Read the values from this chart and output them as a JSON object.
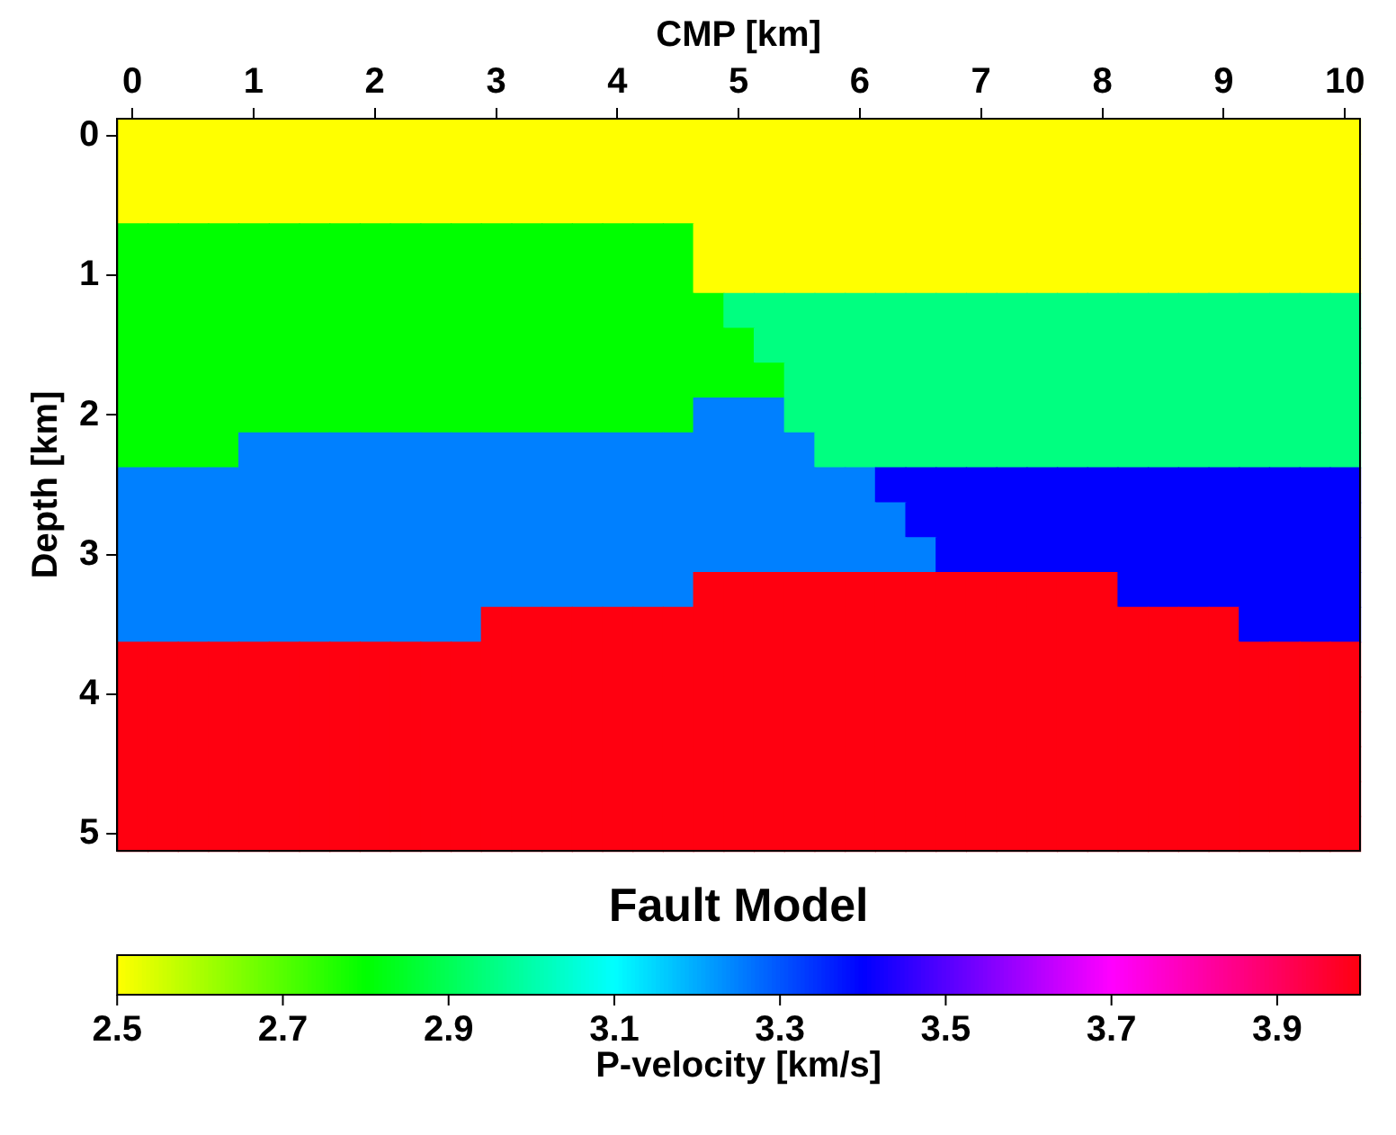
{
  "chart_data": {
    "type": "heatmap",
    "title": "Fault Model",
    "xlabel": "CMP [km]",
    "ylabel": "Depth [km]",
    "clabel": "P-velocity [km/s]",
    "clim": [
      2.5,
      4.0
    ],
    "cticks": [
      2.5,
      2.7,
      2.9,
      3.1,
      3.3,
      3.5,
      3.7,
      3.9
    ],
    "categories": [
      "0",
      null,
      null,
      null,
      "1",
      null,
      null,
      null,
      "2",
      null,
      null,
      null,
      "3",
      null,
      null,
      null,
      "4",
      null,
      null,
      null,
      "5",
      null,
      null,
      null,
      "6",
      null,
      null,
      null,
      "7",
      null,
      null,
      null,
      "8",
      null,
      null,
      null,
      "9",
      null,
      null,
      null,
      "10"
    ],
    "y_categories": [
      "0",
      null,
      null,
      null,
      "1",
      null,
      null,
      null,
      "2",
      null,
      null,
      null,
      "3",
      null,
      null,
      null,
      "4",
      null,
      null,
      null,
      "5"
    ],
    "cells": [
      [
        2.5,
        2.5,
        2.5,
        2.5,
        2.5,
        2.5,
        2.5,
        2.5,
        2.5,
        2.5,
        2.5,
        2.5,
        2.5,
        2.5,
        2.5,
        2.5,
        2.5,
        2.5,
        2.5,
        2.5,
        2.5,
        2.5,
        2.5,
        2.5,
        2.5,
        2.5,
        2.5,
        2.5,
        2.5,
        2.5,
        2.5,
        2.5,
        2.5,
        2.5,
        2.5,
        2.5,
        2.5,
        2.5,
        2.5,
        2.5,
        2.5
      ],
      [
        2.5,
        2.5,
        2.5,
        2.5,
        2.5,
        2.5,
        2.5,
        2.5,
        2.5,
        2.5,
        2.5,
        2.5,
        2.5,
        2.5,
        2.5,
        2.5,
        2.5,
        2.5,
        2.5,
        2.5,
        2.5,
        2.5,
        2.5,
        2.5,
        2.5,
        2.5,
        2.5,
        2.5,
        2.5,
        2.5,
        2.5,
        2.5,
        2.5,
        2.5,
        2.5,
        2.5,
        2.5,
        2.5,
        2.5,
        2.5,
        2.5
      ],
      [
        2.5,
        2.5,
        2.5,
        2.5,
        2.5,
        2.5,
        2.5,
        2.5,
        2.5,
        2.5,
        2.5,
        2.5,
        2.5,
        2.5,
        2.5,
        2.5,
        2.5,
        2.5,
        2.5,
        2.5,
        2.5,
        2.5,
        2.5,
        2.5,
        2.5,
        2.5,
        2.5,
        2.5,
        2.5,
        2.5,
        2.5,
        2.5,
        2.5,
        2.5,
        2.5,
        2.5,
        2.5,
        2.5,
        2.5,
        2.5,
        2.5
      ],
      [
        2.8,
        2.8,
        2.8,
        2.8,
        2.8,
        2.8,
        2.8,
        2.8,
        2.8,
        2.8,
        2.8,
        2.8,
        2.8,
        2.8,
        2.8,
        2.8,
        2.8,
        2.8,
        2.8,
        2.5,
        2.5,
        2.5,
        2.5,
        2.5,
        2.5,
        2.5,
        2.5,
        2.5,
        2.5,
        2.5,
        2.5,
        2.5,
        2.5,
        2.5,
        2.5,
        2.5,
        2.5,
        2.5,
        2.5,
        2.5,
        2.5
      ],
      [
        2.8,
        2.8,
        2.8,
        2.8,
        2.8,
        2.8,
        2.8,
        2.8,
        2.8,
        2.8,
        2.8,
        2.8,
        2.8,
        2.8,
        2.8,
        2.8,
        2.8,
        2.8,
        2.8,
        2.5,
        2.5,
        2.5,
        2.5,
        2.5,
        2.5,
        2.5,
        2.5,
        2.5,
        2.5,
        2.5,
        2.5,
        2.5,
        2.5,
        2.5,
        2.5,
        2.5,
        2.5,
        2.5,
        2.5,
        2.5,
        2.5
      ],
      [
        2.8,
        2.8,
        2.8,
        2.8,
        2.8,
        2.8,
        2.8,
        2.8,
        2.8,
        2.8,
        2.8,
        2.8,
        2.8,
        2.8,
        2.8,
        2.8,
        2.8,
        2.8,
        2.8,
        2.8,
        2.95,
        2.95,
        2.95,
        2.95,
        2.95,
        2.95,
        2.95,
        2.95,
        2.95,
        2.95,
        2.95,
        2.95,
        2.95,
        2.95,
        2.95,
        2.95,
        2.95,
        2.95,
        2.95,
        2.95,
        2.95
      ],
      [
        2.8,
        2.8,
        2.8,
        2.8,
        2.8,
        2.8,
        2.8,
        2.8,
        2.8,
        2.8,
        2.8,
        2.8,
        2.8,
        2.8,
        2.8,
        2.8,
        2.8,
        2.8,
        2.8,
        2.8,
        2.8,
        2.95,
        2.95,
        2.95,
        2.95,
        2.95,
        2.95,
        2.95,
        2.95,
        2.95,
        2.95,
        2.95,
        2.95,
        2.95,
        2.95,
        2.95,
        2.95,
        2.95,
        2.95,
        2.95,
        2.95
      ],
      [
        2.8,
        2.8,
        2.8,
        2.8,
        2.8,
        2.8,
        2.8,
        2.8,
        2.8,
        2.8,
        2.8,
        2.8,
        2.8,
        2.8,
        2.8,
        2.8,
        2.8,
        2.8,
        2.8,
        2.8,
        2.8,
        2.8,
        2.95,
        2.95,
        2.95,
        2.95,
        2.95,
        2.95,
        2.95,
        2.95,
        2.95,
        2.95,
        2.95,
        2.95,
        2.95,
        2.95,
        2.95,
        2.95,
        2.95,
        2.95,
        2.95
      ],
      [
        2.8,
        2.8,
        2.8,
        2.8,
        2.8,
        2.8,
        2.8,
        2.8,
        2.8,
        2.8,
        2.8,
        2.8,
        2.8,
        2.8,
        2.8,
        2.8,
        2.8,
        2.8,
        2.8,
        3.25,
        3.25,
        3.25,
        2.95,
        2.95,
        2.95,
        2.95,
        2.95,
        2.95,
        2.95,
        2.95,
        2.95,
        2.95,
        2.95,
        2.95,
        2.95,
        2.95,
        2.95,
        2.95,
        2.95,
        2.95,
        2.95
      ],
      [
        2.8,
        2.8,
        2.8,
        2.8,
        3.25,
        3.25,
        3.25,
        3.25,
        3.25,
        3.25,
        3.25,
        3.25,
        3.25,
        3.25,
        3.25,
        3.25,
        3.25,
        3.25,
        3.25,
        3.25,
        3.25,
        3.25,
        3.25,
        2.95,
        2.95,
        2.95,
        2.95,
        2.95,
        2.95,
        2.95,
        2.95,
        2.95,
        2.95,
        2.95,
        2.95,
        2.95,
        2.95,
        2.95,
        2.95,
        2.95,
        2.95
      ],
      [
        3.25,
        3.25,
        3.25,
        3.25,
        3.25,
        3.25,
        3.25,
        3.25,
        3.25,
        3.25,
        3.25,
        3.25,
        3.25,
        3.25,
        3.25,
        3.25,
        3.25,
        3.25,
        3.25,
        3.25,
        3.25,
        3.25,
        3.25,
        3.25,
        3.25,
        3.4,
        3.4,
        3.4,
        3.4,
        3.4,
        3.4,
        3.4,
        3.4,
        3.4,
        3.4,
        3.4,
        3.4,
        3.4,
        3.4,
        3.4,
        3.4
      ],
      [
        3.25,
        3.25,
        3.25,
        3.25,
        3.25,
        3.25,
        3.25,
        3.25,
        3.25,
        3.25,
        3.25,
        3.25,
        3.25,
        3.25,
        3.25,
        3.25,
        3.25,
        3.25,
        3.25,
        3.25,
        3.25,
        3.25,
        3.25,
        3.25,
        3.25,
        3.25,
        3.4,
        3.4,
        3.4,
        3.4,
        3.4,
        3.4,
        3.4,
        3.4,
        3.4,
        3.4,
        3.4,
        3.4,
        3.4,
        3.4,
        3.4
      ],
      [
        3.25,
        3.25,
        3.25,
        3.25,
        3.25,
        3.25,
        3.25,
        3.25,
        3.25,
        3.25,
        3.25,
        3.25,
        3.25,
        3.25,
        3.25,
        3.25,
        3.25,
        3.25,
        3.25,
        3.25,
        3.25,
        3.25,
        3.25,
        3.25,
        3.25,
        3.25,
        3.25,
        3.4,
        3.4,
        3.4,
        3.4,
        3.4,
        3.4,
        3.4,
        3.4,
        3.4,
        3.4,
        3.4,
        3.4,
        3.4,
        3.4
      ],
      [
        3.25,
        3.25,
        3.25,
        3.25,
        3.25,
        3.25,
        3.25,
        3.25,
        3.25,
        3.25,
        3.25,
        3.25,
        3.25,
        3.25,
        3.25,
        3.25,
        3.25,
        3.25,
        3.25,
        4.0,
        4.0,
        4.0,
        4.0,
        4.0,
        4.0,
        4.0,
        4.0,
        4.0,
        4.0,
        4.0,
        4.0,
        4.0,
        4.0,
        3.4,
        3.4,
        3.4,
        3.4,
        3.4,
        3.4,
        3.4,
        3.4
      ],
      [
        3.25,
        3.25,
        3.25,
        3.25,
        3.25,
        3.25,
        3.25,
        3.25,
        3.25,
        3.25,
        3.25,
        3.25,
        4.0,
        4.0,
        4.0,
        4.0,
        4.0,
        4.0,
        4.0,
        4.0,
        4.0,
        4.0,
        4.0,
        4.0,
        4.0,
        4.0,
        4.0,
        4.0,
        4.0,
        4.0,
        4.0,
        4.0,
        4.0,
        4.0,
        4.0,
        4.0,
        4.0,
        3.4,
        3.4,
        3.4,
        3.4
      ],
      [
        4.0,
        4.0,
        4.0,
        4.0,
        4.0,
        4.0,
        4.0,
        4.0,
        4.0,
        4.0,
        4.0,
        4.0,
        4.0,
        4.0,
        4.0,
        4.0,
        4.0,
        4.0,
        4.0,
        4.0,
        4.0,
        4.0,
        4.0,
        4.0,
        4.0,
        4.0,
        4.0,
        4.0,
        4.0,
        4.0,
        4.0,
        4.0,
        4.0,
        4.0,
        4.0,
        4.0,
        4.0,
        4.0,
        4.0,
        4.0,
        4.0
      ],
      [
        4.0,
        4.0,
        4.0,
        4.0,
        4.0,
        4.0,
        4.0,
        4.0,
        4.0,
        4.0,
        4.0,
        4.0,
        4.0,
        4.0,
        4.0,
        4.0,
        4.0,
        4.0,
        4.0,
        4.0,
        4.0,
        4.0,
        4.0,
        4.0,
        4.0,
        4.0,
        4.0,
        4.0,
        4.0,
        4.0,
        4.0,
        4.0,
        4.0,
        4.0,
        4.0,
        4.0,
        4.0,
        4.0,
        4.0,
        4.0,
        4.0
      ],
      [
        4.0,
        4.0,
        4.0,
        4.0,
        4.0,
        4.0,
        4.0,
        4.0,
        4.0,
        4.0,
        4.0,
        4.0,
        4.0,
        4.0,
        4.0,
        4.0,
        4.0,
        4.0,
        4.0,
        4.0,
        4.0,
        4.0,
        4.0,
        4.0,
        4.0,
        4.0,
        4.0,
        4.0,
        4.0,
        4.0,
        4.0,
        4.0,
        4.0,
        4.0,
        4.0,
        4.0,
        4.0,
        4.0,
        4.0,
        4.0,
        4.0
      ],
      [
        4.0,
        4.0,
        4.0,
        4.0,
        4.0,
        4.0,
        4.0,
        4.0,
        4.0,
        4.0,
        4.0,
        4.0,
        4.0,
        4.0,
        4.0,
        4.0,
        4.0,
        4.0,
        4.0,
        4.0,
        4.0,
        4.0,
        4.0,
        4.0,
        4.0,
        4.0,
        4.0,
        4.0,
        4.0,
        4.0,
        4.0,
        4.0,
        4.0,
        4.0,
        4.0,
        4.0,
        4.0,
        4.0,
        4.0,
        4.0,
        4.0
      ],
      [
        4.0,
        4.0,
        4.0,
        4.0,
        4.0,
        4.0,
        4.0,
        4.0,
        4.0,
        4.0,
        4.0,
        4.0,
        4.0,
        4.0,
        4.0,
        4.0,
        4.0,
        4.0,
        4.0,
        4.0,
        4.0,
        4.0,
        4.0,
        4.0,
        4.0,
        4.0,
        4.0,
        4.0,
        4.0,
        4.0,
        4.0,
        4.0,
        4.0,
        4.0,
        4.0,
        4.0,
        4.0,
        4.0,
        4.0,
        4.0,
        4.0
      ],
      [
        4.0,
        4.0,
        4.0,
        4.0,
        4.0,
        4.0,
        4.0,
        4.0,
        4.0,
        4.0,
        4.0,
        4.0,
        4.0,
        4.0,
        4.0,
        4.0,
        4.0,
        4.0,
        4.0,
        4.0,
        4.0,
        4.0,
        4.0,
        4.0,
        4.0,
        4.0,
        4.0,
        4.0,
        4.0,
        4.0,
        4.0,
        4.0,
        4.0,
        4.0,
        4.0,
        4.0,
        4.0,
        4.0,
        4.0,
        4.0,
        4.0
      ]
    ]
  }
}
